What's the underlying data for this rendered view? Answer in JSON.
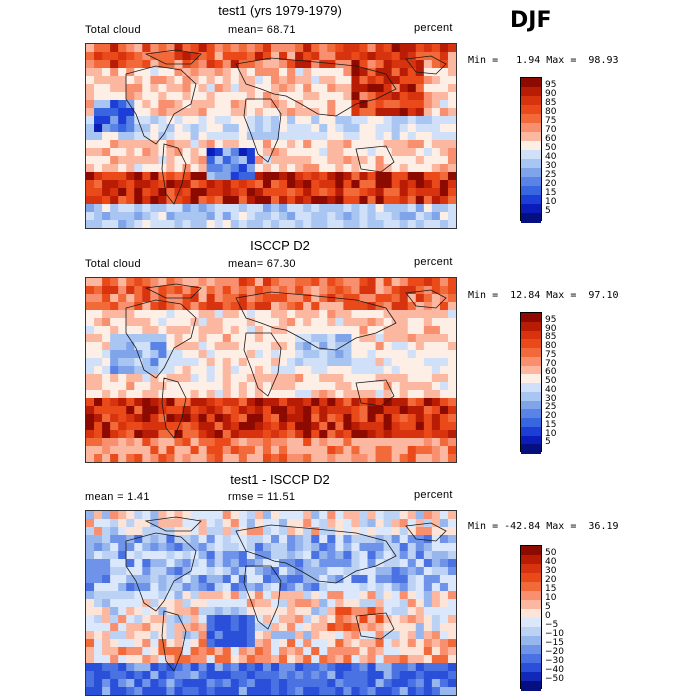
{
  "season": "DJF",
  "panels": [
    {
      "title": "test1 (yrs 1979-1979)",
      "left_label": "Total cloud",
      "center_label": "mean=  68.71",
      "right_label": "percent",
      "minmax": "Min =   1.94 Max =  98.93",
      "field": "model",
      "colorbar": {
        "labels": [
          "95",
          "90",
          "85",
          "80",
          "75",
          "70",
          "60",
          "50",
          "40",
          "30",
          "25",
          "20",
          "15",
          "10",
          "5"
        ],
        "colors": [
          "#8c0a00",
          "#b81c05",
          "#d8330f",
          "#ea4a1a",
          "#f36a3a",
          "#f89070",
          "#fbb7a0",
          "#fdeee6",
          "#cfe0f8",
          "#a9c5f2",
          "#7fa4ea",
          "#5a83e6",
          "#3865e0",
          "#1d3ed6",
          "#0a1db8",
          "#050f80"
        ]
      }
    },
    {
      "title": "ISCCP D2",
      "left_label": "Total cloud",
      "center_label": "mean=  67.30",
      "right_label": "percent",
      "minmax": "Min =  12.84 Max =  97.10",
      "field": "obs",
      "colorbar": {
        "labels": [
          "95",
          "90",
          "85",
          "80",
          "75",
          "70",
          "60",
          "50",
          "40",
          "30",
          "25",
          "20",
          "15",
          "10",
          "5"
        ],
        "colors": [
          "#8c0a00",
          "#b81c05",
          "#d8330f",
          "#ea4a1a",
          "#f36a3a",
          "#f89070",
          "#fbb7a0",
          "#fdeee6",
          "#cfe0f8",
          "#a9c5f2",
          "#7fa4ea",
          "#5a83e6",
          "#3865e0",
          "#1d3ed6",
          "#0a1db8",
          "#050f80"
        ]
      }
    },
    {
      "title": "test1 - ISCCP D2",
      "left_label": "mean =    1.41",
      "center_label": "rmse =  11.51",
      "right_label": "percent",
      "minmax": "Min = -42.84 Max =  36.19",
      "field": "diff",
      "colorbar": {
        "labels": [
          "50",
          "40",
          "30",
          "20",
          "15",
          "10",
          "5",
          "0",
          "−5",
          "−10",
          "−15",
          "−20",
          "−30",
          "−40",
          "−50"
        ],
        "colors": [
          "#8c0a00",
          "#b81c05",
          "#d8330f",
          "#ea4a1a",
          "#f36a3a",
          "#f89070",
          "#fbb7a0",
          "#fde4d8",
          "#dbe8fb",
          "#bcd2f5",
          "#98b6ee",
          "#6f93e8",
          "#4a72e2",
          "#2a4fd8",
          "#1228b8",
          "#050f80"
        ]
      }
    }
  ]
}
